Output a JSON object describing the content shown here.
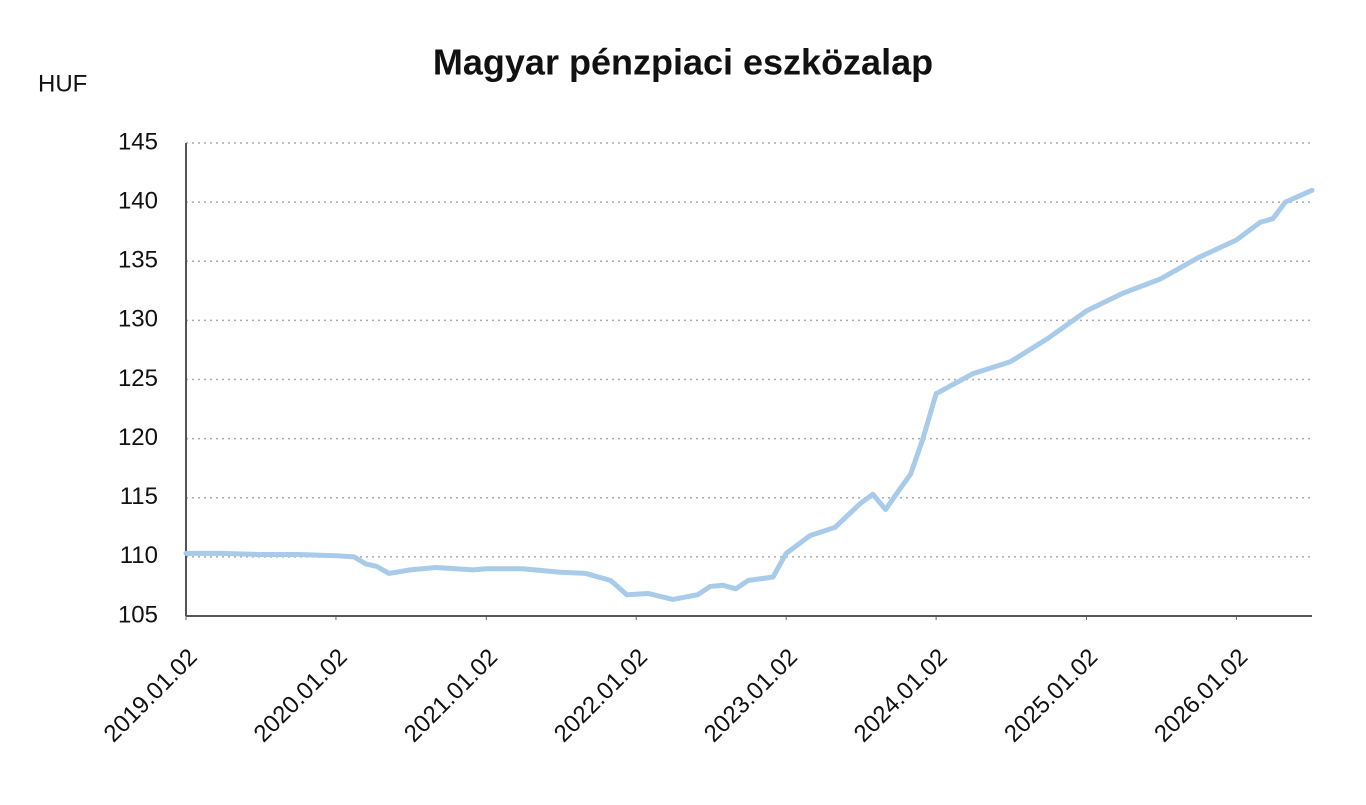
{
  "chart_data": {
    "type": "line",
    "title": "Magyar pénzpiaci eszközalap",
    "y_label": "HUF",
    "x": [
      "2019.01.02",
      "2019.04.01",
      "2019.07.01",
      "2019.10.01",
      "2020.01.02",
      "2020.02.15",
      "2020.03.15",
      "2020.04.10",
      "2020.05.10",
      "2020.07.01",
      "2020.09.01",
      "2020.12.01",
      "2021.01.02",
      "2021.04.01",
      "2021.07.01",
      "2021.09.01",
      "2021.11.01",
      "2021.12.10",
      "2022.02.01",
      "2022.04.01",
      "2022.06.01",
      "2022.07.01",
      "2022.08.01",
      "2022.09.01",
      "2022.10.01",
      "2022.12.01",
      "2023.01.02",
      "2023.03.01",
      "2023.05.01",
      "2023.07.01",
      "2023.08.01",
      "2023.09.01",
      "2023.10.01",
      "2023.11.01",
      "2023.12.01",
      "2024.01.02",
      "2024.04.01",
      "2024.07.01",
      "2024.10.01",
      "2025.01.02",
      "2025.04.01",
      "2025.07.01",
      "2025.10.01",
      "2026.01.02",
      "2026.03.01",
      "2026.04.01",
      "2026.05.01",
      "2026.07.05"
    ],
    "values": [
      110.3,
      110.3,
      110.2,
      110.2,
      110.1,
      110.0,
      109.4,
      109.2,
      108.6,
      108.9,
      109.1,
      108.9,
      109.0,
      109.0,
      108.7,
      108.6,
      108.0,
      106.8,
      106.9,
      106.4,
      106.8,
      107.5,
      107.6,
      107.3,
      108.0,
      108.3,
      110.3,
      111.8,
      112.5,
      114.5,
      115.3,
      114.0,
      115.5,
      117.0,
      120.0,
      123.8,
      125.5,
      126.5,
      128.5,
      130.8,
      132.3,
      133.5,
      135.3,
      136.8,
      138.3,
      138.6,
      140.0,
      141.0
    ],
    "color": "#a8cbea",
    "xlim": [
      "2019.01.02",
      "2026.07.05"
    ],
    "xticks": [
      "2019.01.02",
      "2020.01.02",
      "2021.01.02",
      "2022.01.02",
      "2023.01.02",
      "2024.01.02",
      "2025.01.02",
      "2026.01.02"
    ],
    "ylim": [
      105,
      145
    ],
    "yticks": [
      105,
      110,
      115,
      120,
      125,
      130,
      135,
      140,
      145
    ],
    "grid": true
  }
}
